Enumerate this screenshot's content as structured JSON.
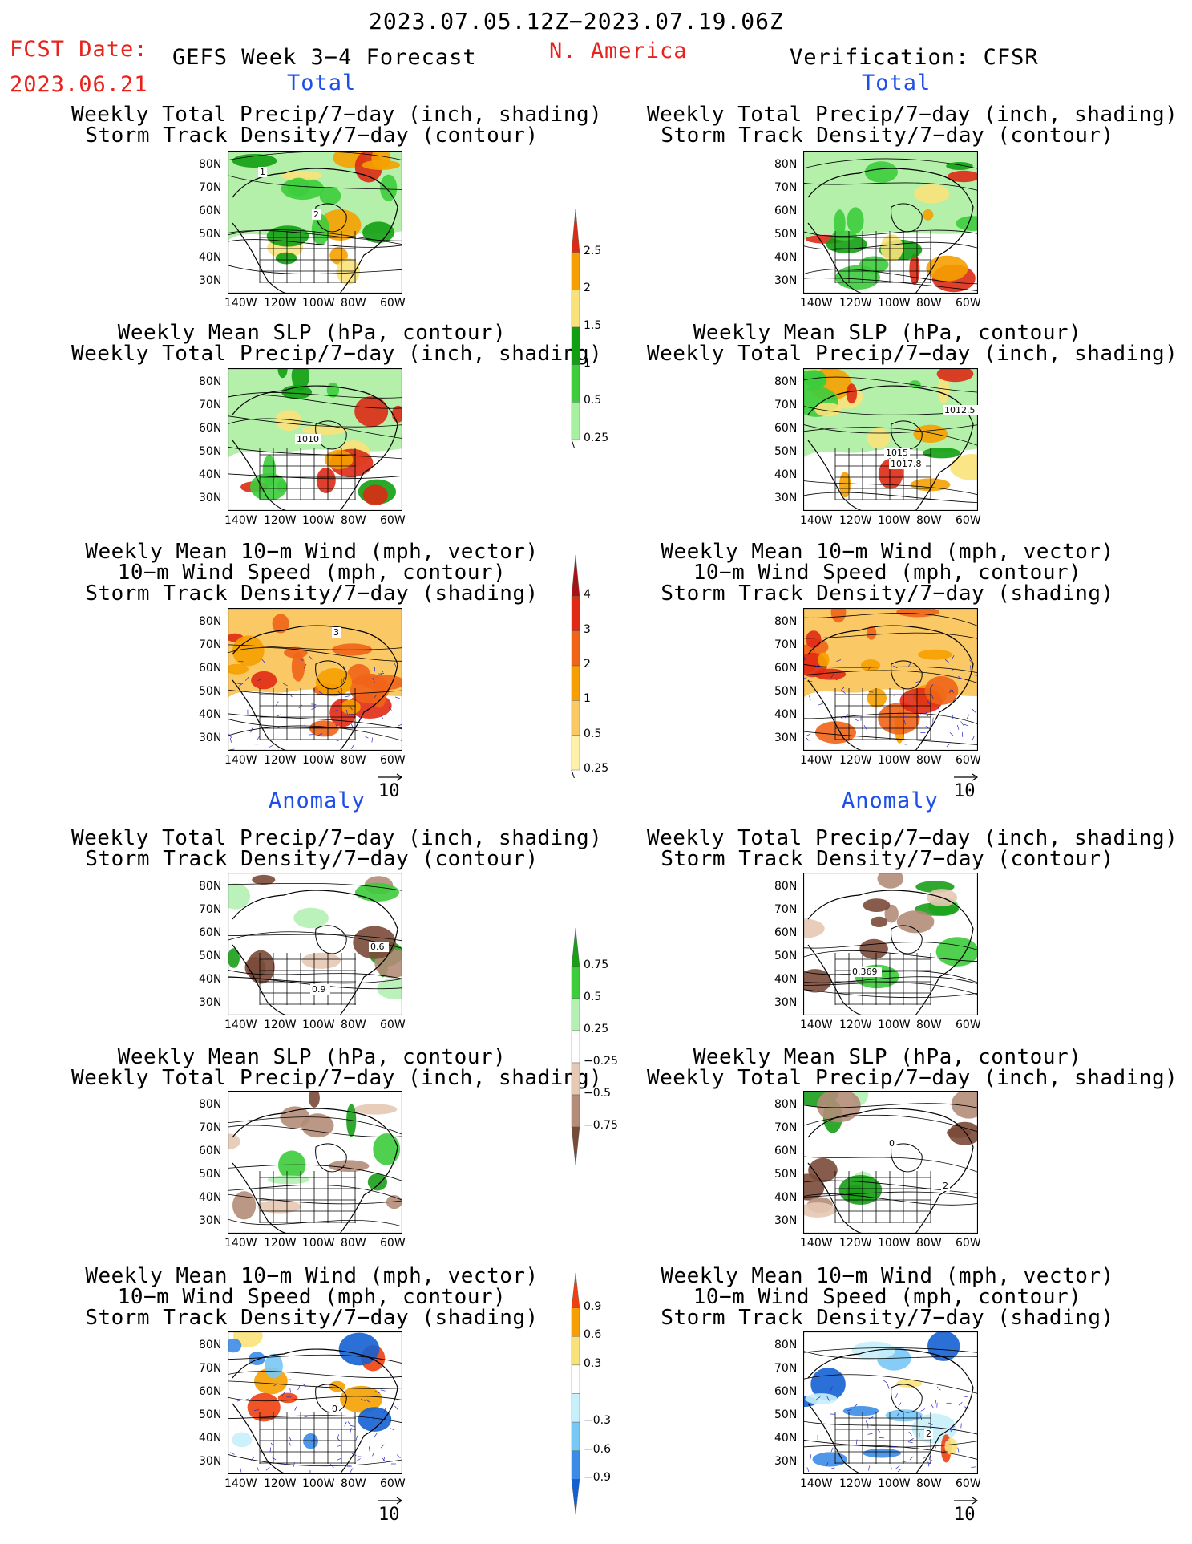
{
  "header": {
    "valid_period": "2023.07.05.12Z−2023.07.19.06Z",
    "fcst_label": "FCST Date:",
    "fcst_date": "2023.06.21",
    "model": "GEFS Week 3−4 Forecast",
    "region": "N. America",
    "verification": "Verification: CFSR"
  },
  "sections": {
    "total": "Total",
    "anomaly": "Anomaly"
  },
  "panels": [
    {
      "title": [
        "Weekly Total Precip/7−day (inch, shading)",
        "Storm Track Density/7−day (contour)"
      ],
      "labels": [
        "1",
        "2"
      ]
    },
    {
      "title": [
        "Weekly Total Precip/7−day (inch, shading)",
        "Storm Track Density/7−day (contour)"
      ],
      "labels": []
    },
    {
      "title": [
        "Weekly Mean SLP (hPa, contour)",
        "Weekly Total Precip/7−day (inch, shading)"
      ],
      "labels": [
        "1010"
      ]
    },
    {
      "title": [
        "Weekly Mean SLP (hPa, contour)",
        "Weekly Total Precip/7−day (inch, shading)"
      ],
      "labels": [
        "1017.8",
        "1012.5",
        "1015"
      ]
    },
    {
      "title": [
        "Weekly Mean 10−m Wind (mph, vector)",
        "10−m Wind Speed (mph, contour)",
        "Storm Track Density/7−day (shading)"
      ],
      "labels": [
        "3"
      ],
      "ref": "10"
    },
    {
      "title": [
        "Weekly Mean 10−m Wind (mph, vector)",
        "10−m Wind Speed (mph, contour)",
        "Storm Track Density/7−day (shading)"
      ],
      "labels": [],
      "ref": "10"
    },
    {
      "title": [
        "Weekly Total Precip/7−day (inch, shading)",
        "Storm Track Density/7−day (contour)"
      ],
      "labels": [
        "0.6",
        "0.9"
      ]
    },
    {
      "title": [
        "Weekly Total Precip/7−day (inch, shading)",
        "Storm Track Density/7−day (contour)"
      ],
      "labels": [
        "0.369"
      ]
    },
    {
      "title": [
        "Weekly Mean SLP (hPa, contour)",
        "Weekly Total Precip/7−day (inch, shading)"
      ],
      "labels": []
    },
    {
      "title": [
        "Weekly Mean SLP (hPa, contour)",
        "Weekly Total Precip/7−day (inch, shading)"
      ],
      "labels": [
        "0",
        "2"
      ]
    },
    {
      "title": [
        "Weekly Mean 10−m Wind (mph, vector)",
        "10−m Wind Speed (mph, contour)",
        "Storm Track Density/7−day (shading)"
      ],
      "labels": [
        "0"
      ],
      "ref": "10"
    },
    {
      "title": [
        "Weekly Mean 10−m Wind (mph, vector)",
        "10−m Wind Speed (mph, contour)",
        "Storm Track Density/7−day (shading)"
      ],
      "labels": [
        "2"
      ],
      "ref": "10"
    }
  ],
  "axes": {
    "lat": [
      "80N",
      "70N",
      "60N",
      "50N",
      "40N",
      "30N"
    ],
    "lon": [
      "140W",
      "120W",
      "100W",
      "80W",
      "60W"
    ]
  },
  "colorbars": [
    {
      "ticks": [
        "2.5",
        "2",
        "1.5",
        "1",
        "0.5",
        "0.25"
      ],
      "colors": [
        "#dc2a14",
        "#f5a000",
        "#fae27a",
        "#129e12",
        "#3ccc3c",
        "#a6f0a0"
      ]
    },
    {
      "ticks": [
        "4",
        "3",
        "2",
        "1",
        "0.5",
        "0.25"
      ],
      "colors": [
        "#a51414",
        "#e02a14",
        "#f06418",
        "#f5a000",
        "#fac864",
        "#fff0aa"
      ]
    },
    {
      "ticks": [
        "0.75",
        "0.5",
        "0.25",
        "−0.25",
        "−0.5",
        "−0.75"
      ],
      "colors": [
        "#1a9e1a",
        "#3ccc3c",
        "#b4f0b4",
        "#ffffff",
        "#e6c8b4",
        "#b48c78",
        "#7a4a38"
      ]
    },
    {
      "ticks": [
        "0.9",
        "0.6",
        "0.3",
        "−0.3",
        "−0.6",
        "−0.9"
      ],
      "colors": [
        "#f04010",
        "#f5a000",
        "#fae27a",
        "#ffffff",
        "#c8f0fa",
        "#78c8f5",
        "#3c8ce6",
        "#1460d2"
      ]
    }
  ],
  "colors": {
    "header_red": "#e8231d",
    "section_blue": "#1d4fe8",
    "wind_vector_blue": "#2828c8"
  },
  "icons": [
    "reference-vector-arrow-icon"
  ]
}
